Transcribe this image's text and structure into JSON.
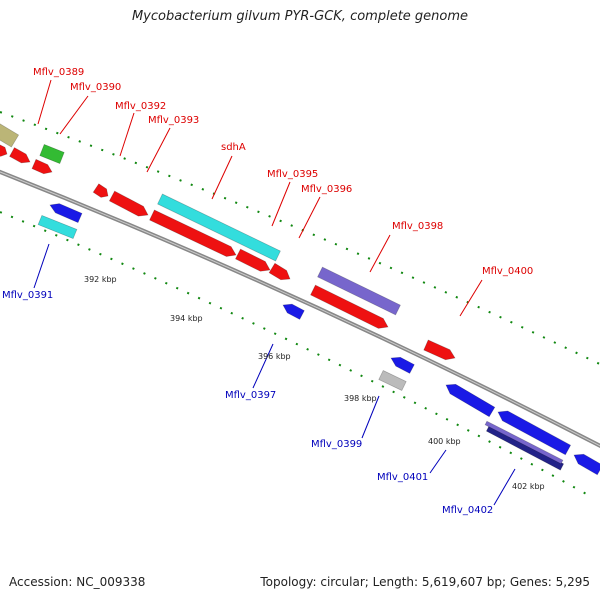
{
  "title": "Mycobacterium gilvum PYR-GCK, complete genome",
  "footer": {
    "accession": "Accession: NC_009338",
    "summary": "Topology: circular; Length: 5,619,607 bp; Genes: 5,295"
  },
  "colors": {
    "forward_cds": "#ee1111",
    "reverse_cds": "#1a1ae6",
    "rna_cyan": "#33dddd",
    "purple": "#7766cc",
    "navy": "#222288",
    "green": "#33bb33",
    "olive": "#bbb577",
    "grey": "#bbbbbb",
    "backbone": "#888888",
    "tick_marks": "#118811"
  },
  "axis_labels": [
    "392 kbp",
    "394 kbp",
    "396 kbp",
    "398 kbp",
    "400 kbp",
    "402 kbp"
  ],
  "gene_labels": [
    {
      "text": "Mflv_0389",
      "color": "#dd0000"
    },
    {
      "text": "Mflv_0390",
      "color": "#dd0000"
    },
    {
      "text": "Mflv_0392",
      "color": "#dd0000"
    },
    {
      "text": "Mflv_0393",
      "color": "#dd0000"
    },
    {
      "text": "sdhA",
      "color": "#dd0000"
    },
    {
      "text": "Mflv_0395",
      "color": "#dd0000"
    },
    {
      "text": "Mflv_0396",
      "color": "#dd0000"
    },
    {
      "text": "Mflv_0398",
      "color": "#dd0000"
    },
    {
      "text": "Mflv_0400",
      "color": "#dd0000"
    },
    {
      "text": "Mflv_0391",
      "color": "#0000bb"
    },
    {
      "text": "Mflv_0397",
      "color": "#0000bb"
    },
    {
      "text": "Mflv_0399",
      "color": "#0000bb"
    },
    {
      "text": "Mflv_0401",
      "color": "#0000bb"
    },
    {
      "text": "Mflv_0402",
      "color": "#0000bb"
    }
  ]
}
